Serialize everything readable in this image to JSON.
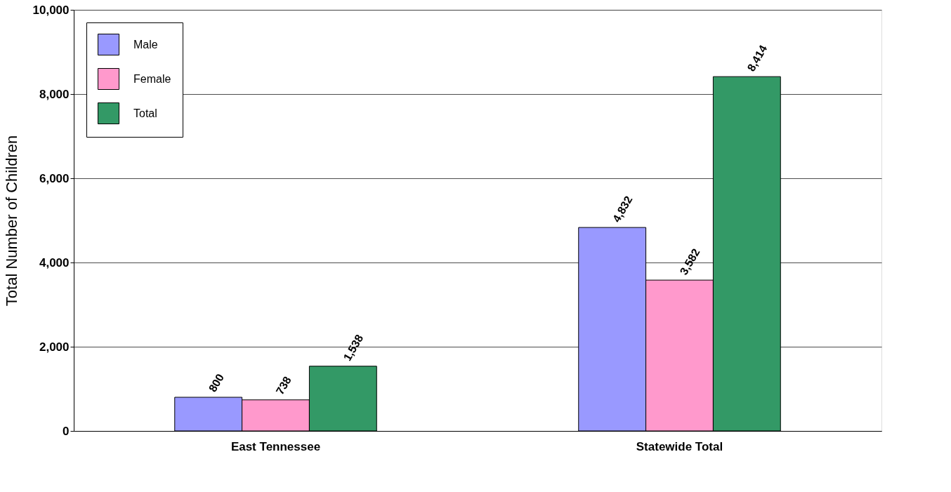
{
  "chart_data": {
    "type": "bar",
    "ylabel": "Total Number of Children",
    "categories": [
      "East Tennessee",
      "Statewide Total"
    ],
    "series": [
      {
        "name": "Male",
        "color": "#9999ff",
        "values": [
          800,
          4832
        ],
        "value_labels": [
          "800",
          "4,832"
        ]
      },
      {
        "name": "Female",
        "color": "#ff99cc",
        "values": [
          738,
          3582
        ],
        "value_labels": [
          "738",
          "3,582"
        ]
      },
      {
        "name": "Total",
        "color": "#339966",
        "values": [
          1538,
          8414
        ],
        "value_labels": [
          "1,538",
          "8,414"
        ]
      }
    ],
    "ylim": [
      0,
      10000
    ],
    "yticks": [
      {
        "value": 0,
        "label": "0"
      },
      {
        "value": 2000,
        "label": "2,000"
      },
      {
        "value": 4000,
        "label": "4,000"
      },
      {
        "value": 6000,
        "label": "6,000"
      },
      {
        "value": 8000,
        "label": "8,000"
      },
      {
        "value": 10000,
        "label": "10,000"
      }
    ],
    "grid": "y",
    "legend": "top left"
  }
}
